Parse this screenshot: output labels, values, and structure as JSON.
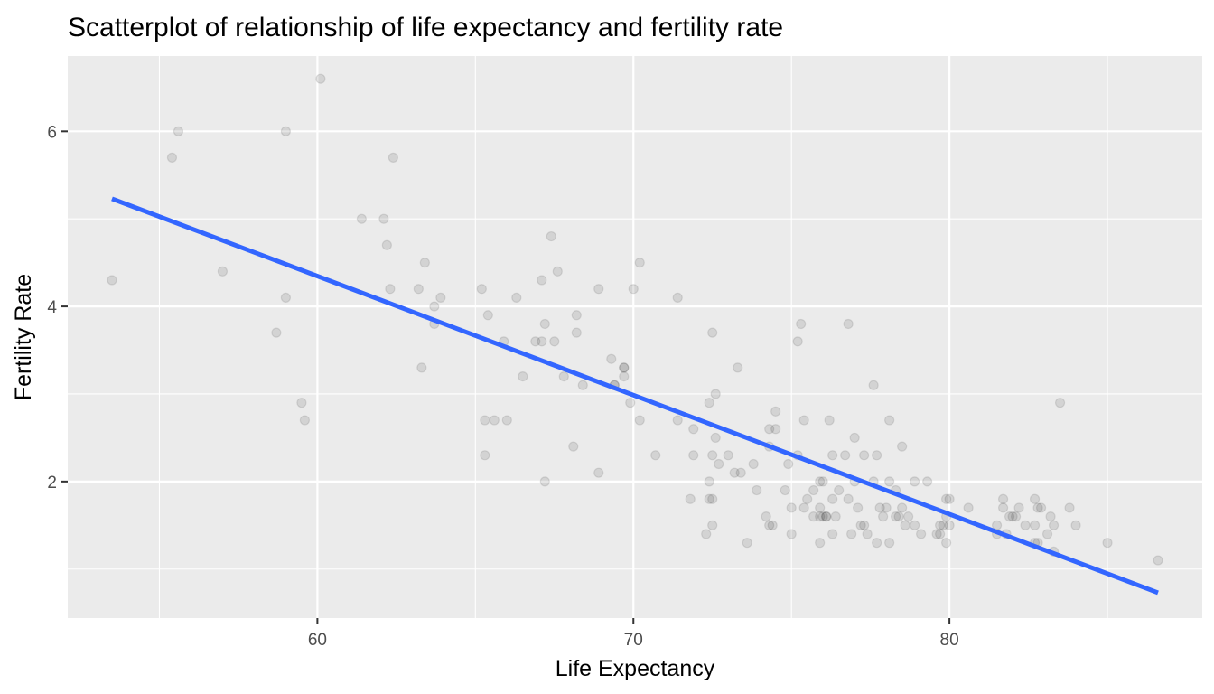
{
  "chart_data": {
    "type": "scatter",
    "title": "Scatterplot of relationship of life expectancy and fertility rate",
    "xlabel": "Life Expectancy",
    "ylabel": "Fertility Rate",
    "xlim": [
      52.1,
      88.0
    ],
    "ylim": [
      0.44,
      6.86
    ],
    "x_major_ticks": [
      60,
      70,
      80
    ],
    "x_minor_ticks": [
      55,
      65,
      75,
      85
    ],
    "y_major_ticks": [
      2,
      4,
      6
    ],
    "y_minor_ticks": [
      1,
      3,
      5
    ],
    "x_tick_labels": [
      "60",
      "70",
      "80"
    ],
    "y_tick_labels": [
      "2",
      "4",
      "6"
    ],
    "grid": true,
    "point_color": "#000000",
    "point_alpha": 0.1,
    "fit_line": {
      "color": "#3366ff",
      "x": [
        53.5,
        86.6
      ],
      "y": [
        5.23,
        0.73
      ]
    },
    "points": [
      [
        53.5,
        4.3
      ],
      [
        55.4,
        5.7
      ],
      [
        55.6,
        6.0
      ],
      [
        57.0,
        4.4
      ],
      [
        58.7,
        3.7
      ],
      [
        59.0,
        6.0
      ],
      [
        59.0,
        4.1
      ],
      [
        59.5,
        2.9
      ],
      [
        59.6,
        2.7
      ],
      [
        60.1,
        6.6
      ],
      [
        61.4,
        5.0
      ],
      [
        62.1,
        5.0
      ],
      [
        62.2,
        4.7
      ],
      [
        62.3,
        4.2
      ],
      [
        62.4,
        5.7
      ],
      [
        63.2,
        4.2
      ],
      [
        63.3,
        3.3
      ],
      [
        63.4,
        4.5
      ],
      [
        63.7,
        3.8
      ],
      [
        63.7,
        4.0
      ],
      [
        63.9,
        4.1
      ],
      [
        65.2,
        4.2
      ],
      [
        65.3,
        2.7
      ],
      [
        65.3,
        2.3
      ],
      [
        65.4,
        3.9
      ],
      [
        65.6,
        2.7
      ],
      [
        65.9,
        3.6
      ],
      [
        66.0,
        2.7
      ],
      [
        66.3,
        4.1
      ],
      [
        66.5,
        3.2
      ],
      [
        66.9,
        3.6
      ],
      [
        67.1,
        4.3
      ],
      [
        67.1,
        3.6
      ],
      [
        67.2,
        3.8
      ],
      [
        67.2,
        2.0
      ],
      [
        67.4,
        4.8
      ],
      [
        67.5,
        3.6
      ],
      [
        67.6,
        4.4
      ],
      [
        67.8,
        3.2
      ],
      [
        68.1,
        2.4
      ],
      [
        68.2,
        3.7
      ],
      [
        68.2,
        3.9
      ],
      [
        68.4,
        3.1
      ],
      [
        68.9,
        2.1
      ],
      [
        68.9,
        4.2
      ],
      [
        69.3,
        3.4
      ],
      [
        69.4,
        3.1
      ],
      [
        69.4,
        3.1
      ],
      [
        69.7,
        3.3
      ],
      [
        69.7,
        3.3
      ],
      [
        69.7,
        3.2
      ],
      [
        69.9,
        2.9
      ],
      [
        70.0,
        4.2
      ],
      [
        70.2,
        2.7
      ],
      [
        70.2,
        4.5
      ],
      [
        70.7,
        2.3
      ],
      [
        71.4,
        4.1
      ],
      [
        71.4,
        2.7
      ],
      [
        71.8,
        1.8
      ],
      [
        71.9,
        2.6
      ],
      [
        71.9,
        2.3
      ],
      [
        72.3,
        1.4
      ],
      [
        72.4,
        1.8
      ],
      [
        72.4,
        2.9
      ],
      [
        72.4,
        2.0
      ],
      [
        72.5,
        3.7
      ],
      [
        72.5,
        2.3
      ],
      [
        72.5,
        1.8
      ],
      [
        72.5,
        1.5
      ],
      [
        72.6,
        2.5
      ],
      [
        72.6,
        3.0
      ],
      [
        72.7,
        2.2
      ],
      [
        73.0,
        2.3
      ],
      [
        73.2,
        2.1
      ],
      [
        73.3,
        3.3
      ],
      [
        73.4,
        2.1
      ],
      [
        73.6,
        1.3
      ],
      [
        73.8,
        2.2
      ],
      [
        73.9,
        1.9
      ],
      [
        74.2,
        1.6
      ],
      [
        74.3,
        1.5
      ],
      [
        74.3,
        2.4
      ],
      [
        74.3,
        2.6
      ],
      [
        74.4,
        1.5
      ],
      [
        74.5,
        2.8
      ],
      [
        74.5,
        2.6
      ],
      [
        74.8,
        1.9
      ],
      [
        74.9,
        2.2
      ],
      [
        75.0,
        1.4
      ],
      [
        75.0,
        1.7
      ],
      [
        75.2,
        2.3
      ],
      [
        75.2,
        3.6
      ],
      [
        75.3,
        3.8
      ],
      [
        75.4,
        1.7
      ],
      [
        75.4,
        2.7
      ],
      [
        75.5,
        1.8
      ],
      [
        75.7,
        1.9
      ],
      [
        75.7,
        1.6
      ],
      [
        75.9,
        1.3
      ],
      [
        75.9,
        2.0
      ],
      [
        75.9,
        1.7
      ],
      [
        75.9,
        1.6
      ],
      [
        76.0,
        2.0
      ],
      [
        76.0,
        1.6
      ],
      [
        76.1,
        1.6
      ],
      [
        76.1,
        1.6
      ],
      [
        76.2,
        2.7
      ],
      [
        76.3,
        1.4
      ],
      [
        76.3,
        2.3
      ],
      [
        76.3,
        1.8
      ],
      [
        76.4,
        1.6
      ],
      [
        76.5,
        1.9
      ],
      [
        76.7,
        2.3
      ],
      [
        76.8,
        1.8
      ],
      [
        76.8,
        3.8
      ],
      [
        76.9,
        1.4
      ],
      [
        77.0,
        2.0
      ],
      [
        77.0,
        2.5
      ],
      [
        77.1,
        1.7
      ],
      [
        77.2,
        1.5
      ],
      [
        77.3,
        1.5
      ],
      [
        77.3,
        2.3
      ],
      [
        77.4,
        1.4
      ],
      [
        77.6,
        2.0
      ],
      [
        77.7,
        1.3
      ],
      [
        77.7,
        2.3
      ],
      [
        77.6,
        3.1
      ],
      [
        77.8,
        1.7
      ],
      [
        77.9,
        1.6
      ],
      [
        78.0,
        1.7
      ],
      [
        78.1,
        1.3
      ],
      [
        78.1,
        2.0
      ],
      [
        78.1,
        2.7
      ],
      [
        78.3,
        1.6
      ],
      [
        78.3,
        1.9
      ],
      [
        78.4,
        1.6
      ],
      [
        78.5,
        2.4
      ],
      [
        78.5,
        1.7
      ],
      [
        78.6,
        1.5
      ],
      [
        78.7,
        1.6
      ],
      [
        78.9,
        1.5
      ],
      [
        78.9,
        2.0
      ],
      [
        79.1,
        1.4
      ],
      [
        79.3,
        2.0
      ],
      [
        79.6,
        1.4
      ],
      [
        79.7,
        1.4
      ],
      [
        79.7,
        1.5
      ],
      [
        79.8,
        1.5
      ],
      [
        79.9,
        1.3
      ],
      [
        79.9,
        1.6
      ],
      [
        79.9,
        1.8
      ],
      [
        80.0,
        1.5
      ],
      [
        80.0,
        1.8
      ],
      [
        80.6,
        1.7
      ],
      [
        81.5,
        1.5
      ],
      [
        81.5,
        1.4
      ],
      [
        81.7,
        1.8
      ],
      [
        81.7,
        1.7
      ],
      [
        81.8,
        1.4
      ],
      [
        81.9,
        1.6
      ],
      [
        82.0,
        1.6
      ],
      [
        82.1,
        1.6
      ],
      [
        82.2,
        1.7
      ],
      [
        82.4,
        1.5
      ],
      [
        82.7,
        1.5
      ],
      [
        82.7,
        1.8
      ],
      [
        82.7,
        1.3
      ],
      [
        82.8,
        1.3
      ],
      [
        82.8,
        1.7
      ],
      [
        82.9,
        1.7
      ],
      [
        83.1,
        1.4
      ],
      [
        83.2,
        1.6
      ],
      [
        83.3,
        1.2
      ],
      [
        83.3,
        1.5
      ],
      [
        83.5,
        2.9
      ],
      [
        83.8,
        1.7
      ],
      [
        84.0,
        1.5
      ],
      [
        85.0,
        1.3
      ],
      [
        86.6,
        1.1
      ]
    ]
  }
}
